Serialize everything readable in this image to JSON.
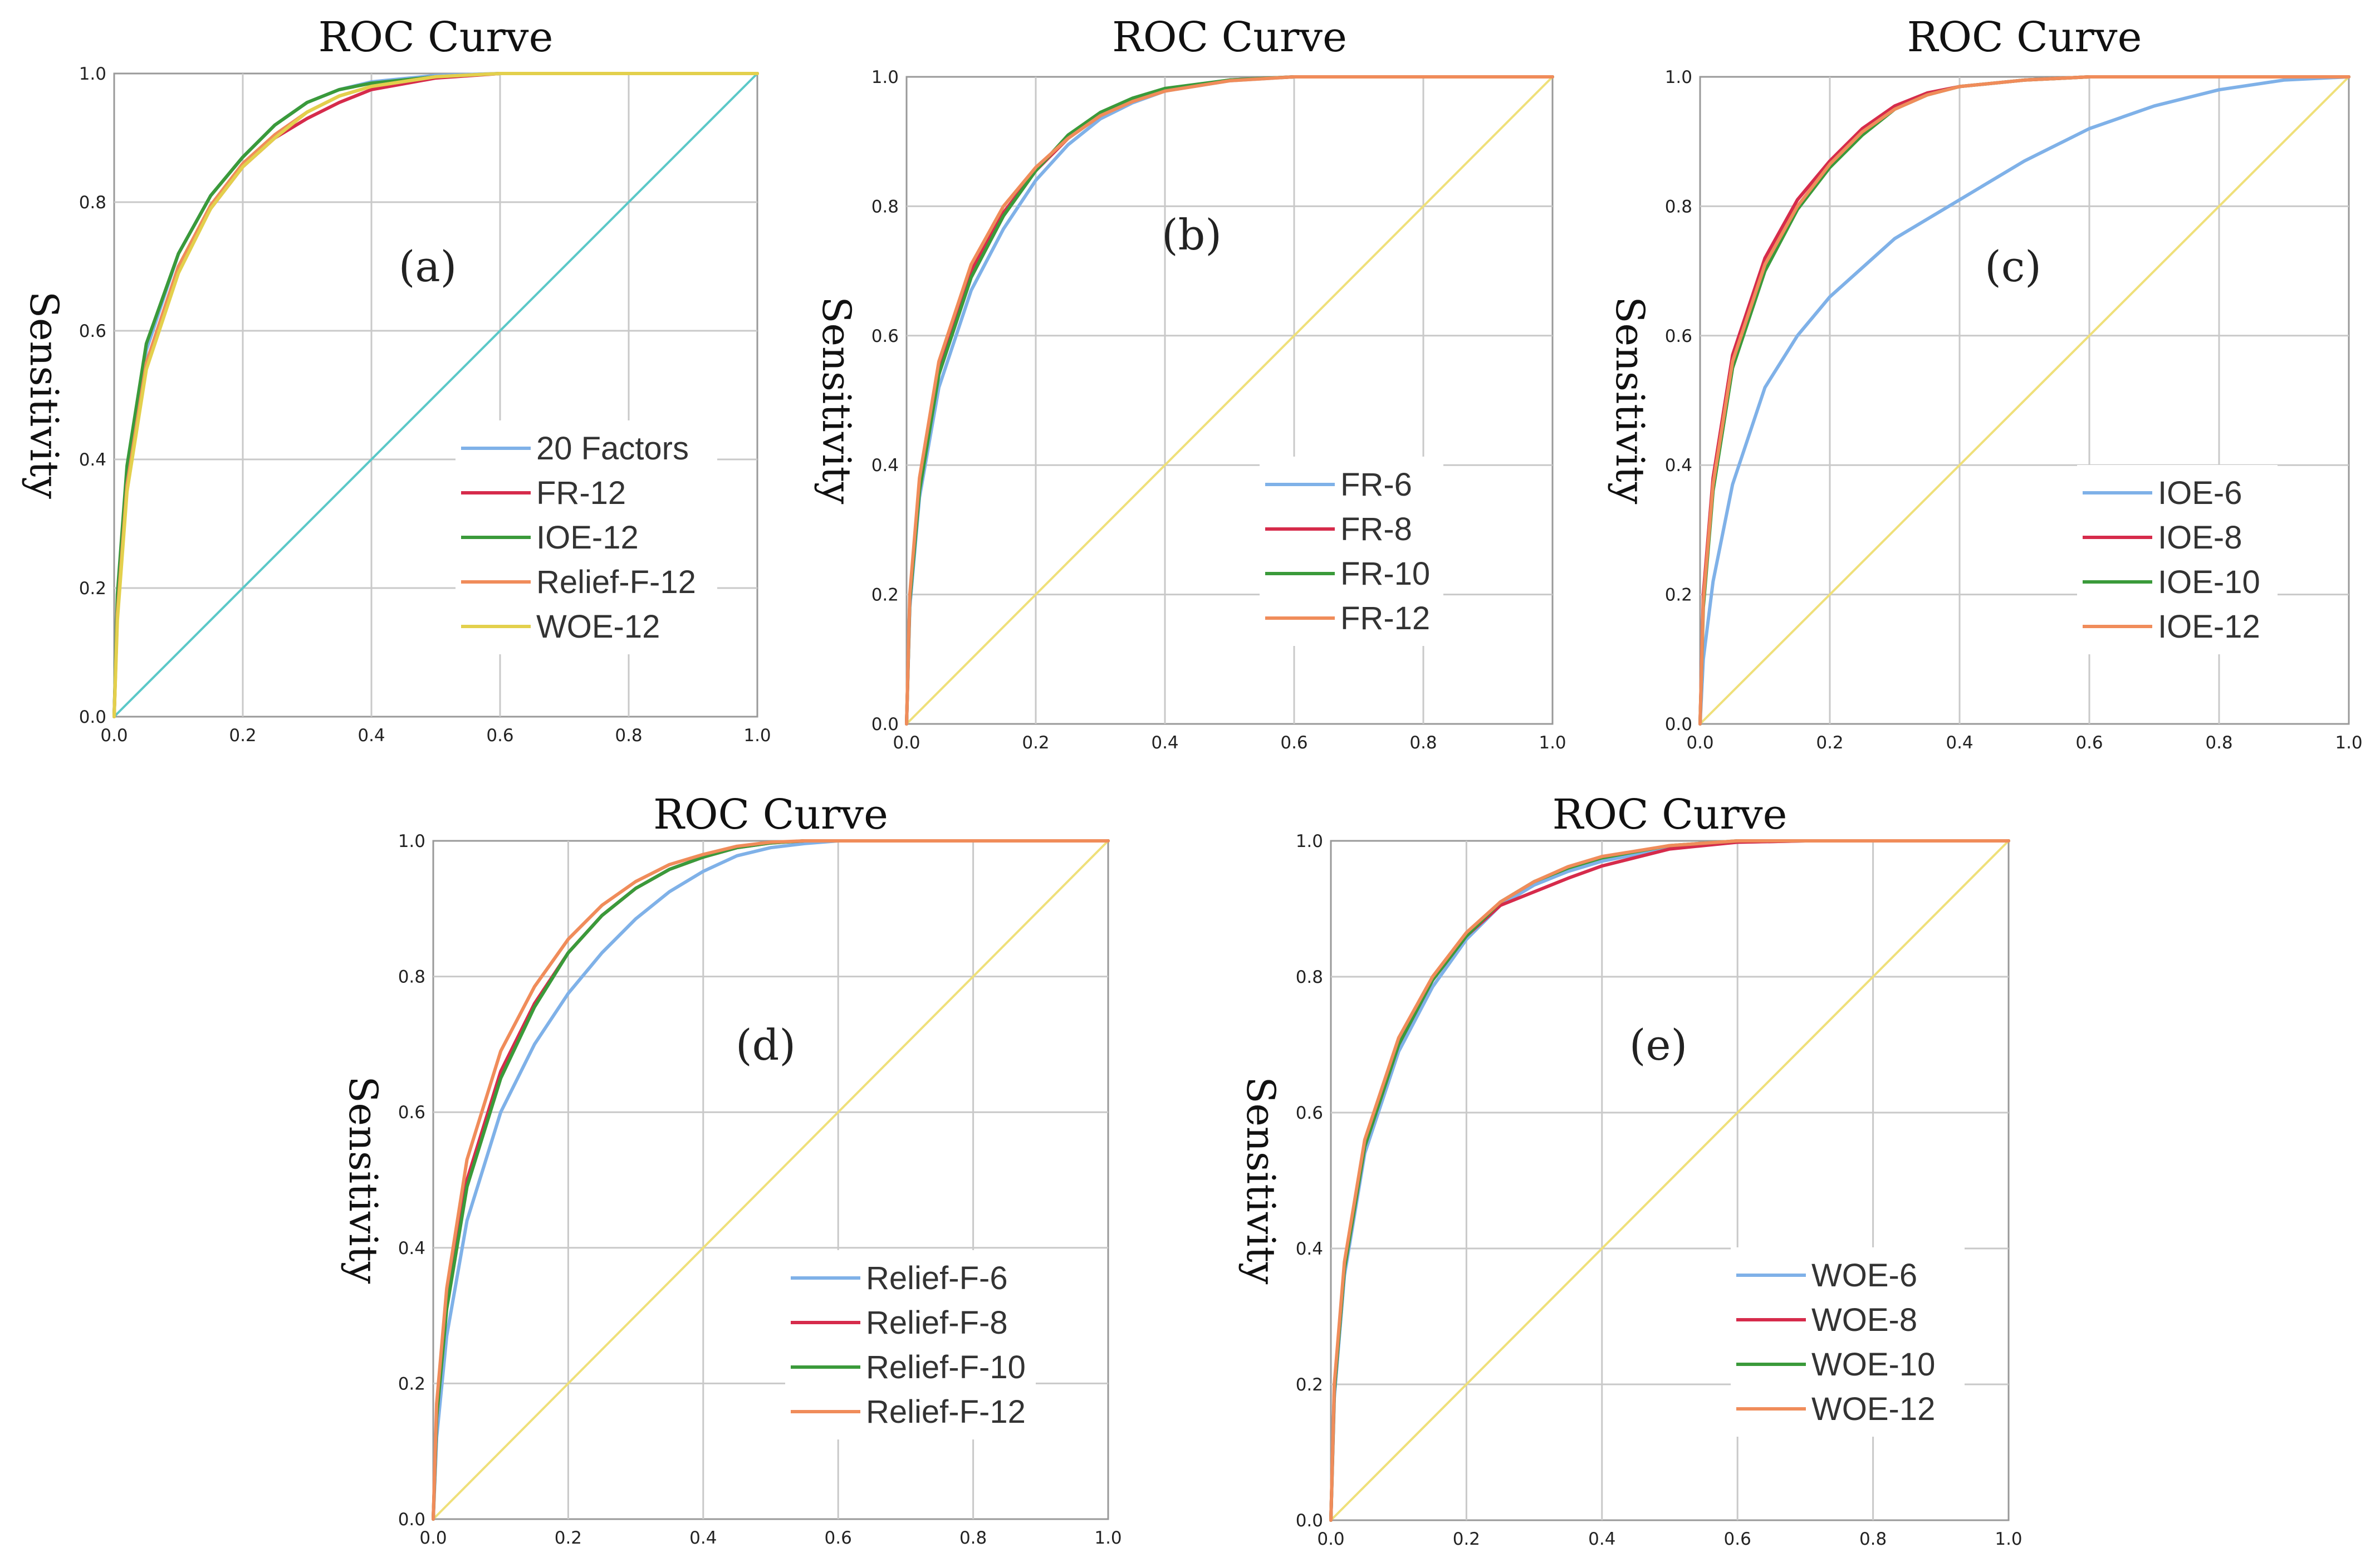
{
  "chart_data": [
    {
      "type": "line",
      "id": "a",
      "title": "ROC Curve",
      "panel_label": "(a)",
      "xlabel": "",
      "ylabel": "Sensitivity",
      "xlim": [
        0,
        1
      ],
      "ylim": [
        0,
        1
      ],
      "grid": true,
      "ticks": [
        "0.0",
        "0.2",
        "0.4",
        "0.6",
        "0.8",
        "1.0"
      ],
      "legend_position": "bottom-right",
      "reference_line": {
        "color": "#5bc8c8",
        "x": [
          0,
          1
        ],
        "y": [
          0,
          1
        ]
      },
      "series": [
        {
          "name": "20 Factors",
          "color": "#7fb1e8",
          "x": [
            0,
            0.005,
            0.02,
            0.05,
            0.1,
            0.15,
            0.2,
            0.25,
            0.3,
            0.35,
            0.4,
            0.5,
            0.6,
            0.7,
            0.8,
            1.0
          ],
          "y": [
            0,
            0.18,
            0.38,
            0.57,
            0.72,
            0.81,
            0.87,
            0.92,
            0.955,
            0.975,
            0.987,
            0.997,
            1.0,
            1.0,
            1.0,
            1.0
          ]
        },
        {
          "name": "FR-12",
          "color": "#d62b4b",
          "x": [
            0,
            0.005,
            0.02,
            0.05,
            0.1,
            0.15,
            0.2,
            0.25,
            0.3,
            0.35,
            0.4,
            0.5,
            0.6,
            0.7,
            0.8,
            1.0
          ],
          "y": [
            0,
            0.17,
            0.37,
            0.55,
            0.7,
            0.79,
            0.855,
            0.9,
            0.93,
            0.955,
            0.975,
            0.993,
            1.0,
            1.0,
            1.0,
            1.0
          ]
        },
        {
          "name": "IOE-12",
          "color": "#3a9a3a",
          "x": [
            0,
            0.005,
            0.02,
            0.05,
            0.1,
            0.15,
            0.2,
            0.25,
            0.3,
            0.35,
            0.4,
            0.5,
            0.6,
            0.7,
            0.8,
            1.0
          ],
          "y": [
            0,
            0.19,
            0.39,
            0.58,
            0.72,
            0.81,
            0.87,
            0.92,
            0.955,
            0.975,
            0.985,
            0.995,
            1.0,
            1.0,
            1.0,
            1.0
          ]
        },
        {
          "name": "Relief-F-12",
          "color": "#f08c5a",
          "x": [
            0,
            0.005,
            0.02,
            0.05,
            0.1,
            0.15,
            0.2,
            0.25,
            0.3,
            0.35,
            0.4,
            0.5,
            0.6,
            0.7,
            0.8,
            1.0
          ],
          "y": [
            0,
            0.16,
            0.36,
            0.55,
            0.7,
            0.795,
            0.86,
            0.905,
            0.94,
            0.965,
            0.98,
            0.995,
            1.0,
            1.0,
            1.0,
            1.0
          ]
        },
        {
          "name": "WOE-12",
          "color": "#e3d04c",
          "x": [
            0,
            0.005,
            0.02,
            0.05,
            0.1,
            0.15,
            0.2,
            0.25,
            0.3,
            0.35,
            0.4,
            0.5,
            0.6,
            0.7,
            0.8,
            1.0
          ],
          "y": [
            0,
            0.15,
            0.35,
            0.54,
            0.69,
            0.79,
            0.855,
            0.9,
            0.94,
            0.965,
            0.98,
            0.995,
            1.0,
            1.0,
            1.0,
            1.0
          ]
        }
      ]
    },
    {
      "type": "line",
      "id": "b",
      "title": "ROC Curve",
      "panel_label": "(b)",
      "xlabel": "",
      "ylabel": "Sensitivity",
      "xlim": [
        0,
        1
      ],
      "ylim": [
        0,
        1
      ],
      "grid": true,
      "ticks": [
        "0.0",
        "0.2",
        "0.4",
        "0.6",
        "0.8",
        "1.0"
      ],
      "legend_position": "bottom-right",
      "reference_line": {
        "color": "#efe07a",
        "x": [
          0,
          1
        ],
        "y": [
          0,
          1
        ]
      },
      "series": [
        {
          "name": "FR-6",
          "color": "#7fb1e8",
          "x": [
            0,
            0.005,
            0.02,
            0.05,
            0.1,
            0.15,
            0.2,
            0.25,
            0.3,
            0.35,
            0.4,
            0.5,
            0.6,
            0.7,
            0.8,
            1.0
          ],
          "y": [
            0,
            0.18,
            0.35,
            0.52,
            0.67,
            0.765,
            0.84,
            0.895,
            0.935,
            0.96,
            0.978,
            0.994,
            1.0,
            1.0,
            1.0,
            1.0
          ]
        },
        {
          "name": "FR-8",
          "color": "#d62b4b",
          "x": [
            0,
            0.005,
            0.02,
            0.05,
            0.1,
            0.15,
            0.2,
            0.25,
            0.3,
            0.35,
            0.4,
            0.5,
            0.6,
            0.7,
            0.8,
            1.0
          ],
          "y": [
            0,
            0.19,
            0.37,
            0.55,
            0.7,
            0.79,
            0.855,
            0.905,
            0.94,
            0.963,
            0.98,
            0.995,
            1.0,
            1.0,
            1.0,
            1.0
          ]
        },
        {
          "name": "FR-10",
          "color": "#3a9a3a",
          "x": [
            0,
            0.005,
            0.02,
            0.05,
            0.1,
            0.15,
            0.2,
            0.25,
            0.3,
            0.35,
            0.4,
            0.5,
            0.6,
            0.7,
            0.8,
            1.0
          ],
          "y": [
            0,
            0.19,
            0.36,
            0.54,
            0.69,
            0.785,
            0.855,
            0.91,
            0.945,
            0.967,
            0.982,
            0.995,
            1.0,
            1.0,
            1.0,
            1.0
          ]
        },
        {
          "name": "FR-12",
          "color": "#f08c5a",
          "x": [
            0,
            0.005,
            0.02,
            0.05,
            0.1,
            0.15,
            0.2,
            0.25,
            0.3,
            0.35,
            0.4,
            0.5,
            0.6,
            0.7,
            0.8,
            1.0
          ],
          "y": [
            0,
            0.2,
            0.38,
            0.56,
            0.71,
            0.8,
            0.86,
            0.905,
            0.94,
            0.962,
            0.978,
            0.994,
            1.0,
            1.0,
            1.0,
            1.0
          ]
        }
      ]
    },
    {
      "type": "line",
      "id": "c",
      "title": "ROC Curve",
      "panel_label": "(c)",
      "xlabel": "",
      "ylabel": "Sensitivity",
      "xlim": [
        0,
        1
      ],
      "ylim": [
        0,
        1
      ],
      "grid": true,
      "ticks": [
        "0.0",
        "0.2",
        "0.4",
        "0.6",
        "0.8",
        "1.0"
      ],
      "legend_position": "bottom-right",
      "reference_line": {
        "color": "#efe07a",
        "x": [
          0,
          1
        ],
        "y": [
          0,
          1
        ]
      },
      "series": [
        {
          "name": "IOE-6",
          "color": "#7fb1e8",
          "x": [
            0,
            0.005,
            0.02,
            0.05,
            0.1,
            0.15,
            0.2,
            0.3,
            0.4,
            0.5,
            0.6,
            0.7,
            0.8,
            0.9,
            1.0
          ],
          "y": [
            0,
            0.1,
            0.22,
            0.37,
            0.52,
            0.6,
            0.66,
            0.75,
            0.81,
            0.87,
            0.92,
            0.955,
            0.98,
            0.995,
            1.0
          ]
        },
        {
          "name": "IOE-8",
          "color": "#d62b4b",
          "x": [
            0,
            0.005,
            0.02,
            0.05,
            0.1,
            0.15,
            0.2,
            0.25,
            0.3,
            0.35,
            0.4,
            0.5,
            0.6,
            0.7,
            0.8,
            1.0
          ],
          "y": [
            0,
            0.2,
            0.38,
            0.57,
            0.72,
            0.81,
            0.87,
            0.92,
            0.955,
            0.975,
            0.985,
            0.995,
            1.0,
            1.0,
            1.0,
            1.0
          ]
        },
        {
          "name": "IOE-10",
          "color": "#3a9a3a",
          "x": [
            0,
            0.005,
            0.02,
            0.05,
            0.1,
            0.15,
            0.2,
            0.25,
            0.3,
            0.35,
            0.4,
            0.5,
            0.6,
            0.7,
            0.8,
            1.0
          ],
          "y": [
            0,
            0.18,
            0.36,
            0.55,
            0.7,
            0.795,
            0.86,
            0.91,
            0.95,
            0.972,
            0.985,
            0.995,
            1.0,
            1.0,
            1.0,
            1.0
          ]
        },
        {
          "name": "IOE-12",
          "color": "#f08c5a",
          "x": [
            0,
            0.005,
            0.02,
            0.05,
            0.1,
            0.15,
            0.2,
            0.25,
            0.3,
            0.35,
            0.4,
            0.5,
            0.6,
            0.7,
            0.8,
            1.0
          ],
          "y": [
            0,
            0.19,
            0.37,
            0.56,
            0.71,
            0.8,
            0.865,
            0.915,
            0.95,
            0.972,
            0.985,
            0.995,
            1.0,
            1.0,
            1.0,
            1.0
          ]
        }
      ]
    },
    {
      "type": "line",
      "id": "d",
      "title": "ROC Curve",
      "panel_label": "(d)",
      "xlabel": "",
      "ylabel": "Sensitivity",
      "xlim": [
        0,
        1
      ],
      "ylim": [
        0,
        1
      ],
      "grid": true,
      "ticks": [
        "0.0",
        "0.2",
        "0.4",
        "0.6",
        "0.8",
        "1.0"
      ],
      "legend_position": "bottom-right",
      "reference_line": {
        "color": "#efe07a",
        "x": [
          0,
          1
        ],
        "y": [
          0,
          1
        ]
      },
      "series": [
        {
          "name": "Relief-F-6",
          "color": "#7fb1e8",
          "x": [
            0,
            0.005,
            0.02,
            0.05,
            0.1,
            0.15,
            0.2,
            0.25,
            0.3,
            0.35,
            0.4,
            0.45,
            0.5,
            0.55,
            0.6,
            0.7,
            0.8,
            1.0
          ],
          "y": [
            0,
            0.12,
            0.27,
            0.44,
            0.6,
            0.7,
            0.775,
            0.835,
            0.885,
            0.925,
            0.955,
            0.978,
            0.99,
            0.996,
            1.0,
            1.0,
            1.0,
            1.0
          ]
        },
        {
          "name": "Relief-F-8",
          "color": "#d62b4b",
          "x": [
            0,
            0.005,
            0.02,
            0.05,
            0.1,
            0.15,
            0.2,
            0.25,
            0.3,
            0.35,
            0.4,
            0.45,
            0.5,
            0.55,
            0.6,
            0.7,
            0.8,
            1.0
          ],
          "y": [
            0,
            0.15,
            0.32,
            0.5,
            0.66,
            0.76,
            0.835,
            0.89,
            0.93,
            0.958,
            0.976,
            0.99,
            0.997,
            1.0,
            1.0,
            1.0,
            1.0,
            1.0
          ]
        },
        {
          "name": "Relief-F-10",
          "color": "#3a9a3a",
          "x": [
            0,
            0.005,
            0.02,
            0.05,
            0.1,
            0.15,
            0.2,
            0.25,
            0.3,
            0.35,
            0.4,
            0.45,
            0.5,
            0.55,
            0.6,
            0.7,
            0.8,
            1.0
          ],
          "y": [
            0,
            0.15,
            0.31,
            0.49,
            0.65,
            0.755,
            0.835,
            0.89,
            0.93,
            0.958,
            0.976,
            0.99,
            0.997,
            1.0,
            1.0,
            1.0,
            1.0,
            1.0
          ]
        },
        {
          "name": "Relief-F-12",
          "color": "#f08c5a",
          "x": [
            0,
            0.005,
            0.02,
            0.05,
            0.1,
            0.15,
            0.2,
            0.25,
            0.3,
            0.35,
            0.4,
            0.45,
            0.5,
            0.55,
            0.6,
            0.7,
            0.8,
            1.0
          ],
          "y": [
            0,
            0.17,
            0.34,
            0.53,
            0.69,
            0.785,
            0.855,
            0.905,
            0.94,
            0.965,
            0.98,
            0.992,
            0.998,
            1.0,
            1.0,
            1.0,
            1.0,
            1.0
          ]
        }
      ]
    },
    {
      "type": "line",
      "id": "e",
      "title": "ROC Curve",
      "panel_label": "(e)",
      "xlabel": "",
      "ylabel": "Sensitivity",
      "xlim": [
        0,
        1
      ],
      "ylim": [
        0,
        1
      ],
      "grid": true,
      "ticks": [
        "0.0",
        "0.2",
        "0.4",
        "0.6",
        "0.8",
        "1.0"
      ],
      "legend_position": "bottom-right",
      "reference_line": {
        "color": "#efe07a",
        "x": [
          0,
          1
        ],
        "y": [
          0,
          1
        ]
      },
      "series": [
        {
          "name": "WOE-6",
          "color": "#7fb1e8",
          "x": [
            0,
            0.005,
            0.02,
            0.05,
            0.1,
            0.15,
            0.2,
            0.25,
            0.3,
            0.35,
            0.4,
            0.5,
            0.6,
            0.7,
            0.8,
            1.0
          ],
          "y": [
            0,
            0.18,
            0.36,
            0.54,
            0.69,
            0.785,
            0.855,
            0.905,
            0.935,
            0.955,
            0.97,
            0.99,
            0.998,
            1.0,
            1.0,
            1.0
          ]
        },
        {
          "name": "WOE-8",
          "color": "#d62b4b",
          "x": [
            0,
            0.005,
            0.02,
            0.05,
            0.1,
            0.15,
            0.2,
            0.25,
            0.3,
            0.35,
            0.4,
            0.5,
            0.6,
            0.7,
            0.8,
            1.0
          ],
          "y": [
            0,
            0.19,
            0.37,
            0.55,
            0.7,
            0.795,
            0.86,
            0.905,
            0.925,
            0.945,
            0.963,
            0.988,
            0.998,
            1.0,
            1.0,
            1.0
          ]
        },
        {
          "name": "WOE-10",
          "color": "#3a9a3a",
          "x": [
            0,
            0.005,
            0.02,
            0.05,
            0.1,
            0.15,
            0.2,
            0.25,
            0.3,
            0.35,
            0.4,
            0.5,
            0.6,
            0.7,
            0.8,
            1.0
          ],
          "y": [
            0,
            0.19,
            0.37,
            0.55,
            0.7,
            0.795,
            0.86,
            0.91,
            0.94,
            0.96,
            0.975,
            0.993,
            1.0,
            1.0,
            1.0,
            1.0
          ]
        },
        {
          "name": "WOE-12",
          "color": "#f08c5a",
          "x": [
            0,
            0.005,
            0.02,
            0.05,
            0.1,
            0.15,
            0.2,
            0.25,
            0.3,
            0.35,
            0.4,
            0.5,
            0.6,
            0.7,
            0.8,
            1.0
          ],
          "y": [
            0,
            0.2,
            0.38,
            0.56,
            0.71,
            0.8,
            0.865,
            0.91,
            0.94,
            0.962,
            0.977,
            0.993,
            1.0,
            1.0,
            1.0,
            1.0
          ]
        }
      ]
    }
  ]
}
